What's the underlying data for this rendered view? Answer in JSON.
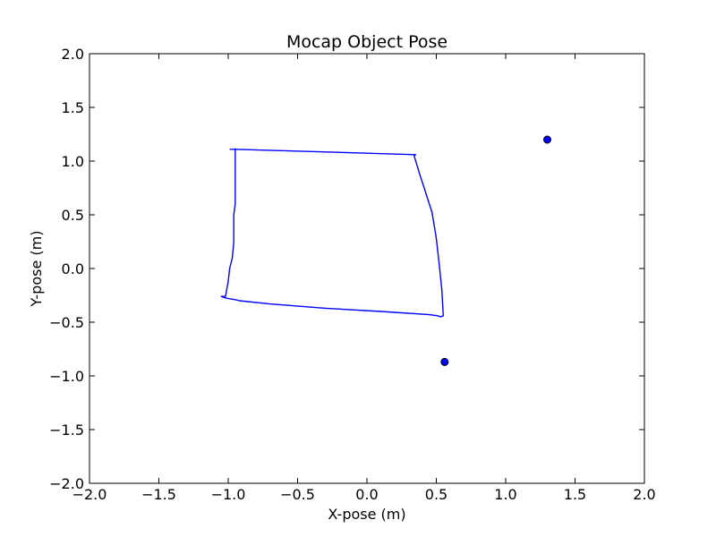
{
  "chart_data": {
    "type": "line",
    "title": "Mocap Object Pose",
    "xlabel": "X-pose (m)",
    "ylabel": "Y-pose (m)",
    "xlim": [
      -2.0,
      2.0
    ],
    "ylim": [
      -2.0,
      2.0
    ],
    "xticks": [
      -2.0,
      -1.5,
      -1.0,
      -0.5,
      0.0,
      0.5,
      1.0,
      1.5,
      2.0
    ],
    "yticks": [
      -2.0,
      -1.5,
      -1.0,
      -0.5,
      0.0,
      0.5,
      1.0,
      1.5,
      2.0
    ],
    "xtick_labels": [
      "−2.0",
      "−1.5",
      "−1.0",
      "−0.5",
      "0.0",
      "0.5",
      "1.0",
      "1.5",
      "2.0"
    ],
    "ytick_labels": [
      "−2.0",
      "−1.5",
      "−1.0",
      "−0.5",
      "0.0",
      "0.5",
      "1.0",
      "1.5",
      "2.0"
    ],
    "grid": false,
    "line_color": "#0000ff",
    "marker_color": "#0000ff",
    "series": [
      {
        "kind": "line",
        "x": [
          -0.99,
          -0.95,
          0.35,
          0.35,
          0.34,
          0.38,
          0.42,
          0.47,
          0.5,
          0.52,
          0.54,
          0.55,
          0.53,
          0.51,
          0.45,
          0.1,
          -0.3,
          -0.7,
          -0.92,
          -0.95,
          -1.0,
          -1.03,
          -1.05,
          -1.02,
          -1.0,
          -0.99,
          -0.97,
          -0.96,
          -0.96,
          -0.95,
          -0.95,
          -0.95,
          -0.95,
          -0.95
        ],
        "y": [
          1.11,
          1.11,
          1.06,
          1.06,
          1.05,
          0.88,
          0.72,
          0.52,
          0.28,
          0.05,
          -0.2,
          -0.44,
          -0.45,
          -0.44,
          -0.43,
          -0.4,
          -0.37,
          -0.33,
          -0.3,
          -0.29,
          -0.28,
          -0.27,
          -0.26,
          -0.26,
          -0.12,
          0.0,
          0.1,
          0.25,
          0.5,
          0.6,
          0.8,
          1.0,
          1.08,
          1.12
        ]
      }
    ],
    "points": [
      {
        "x": 1.3,
        "y": 1.2
      },
      {
        "x": 0.56,
        "y": -0.87
      }
    ]
  }
}
